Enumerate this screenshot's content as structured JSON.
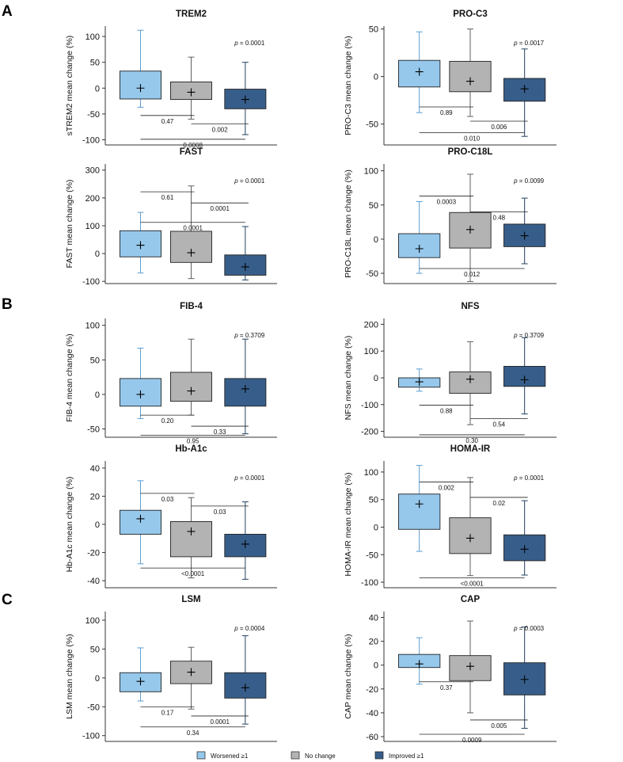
{
  "panel_letters": [
    "A",
    "B",
    "C"
  ],
  "groups": [
    {
      "name": "Worsened ≥1",
      "fill": "#96c8ec",
      "stroke": "#5d9ed2"
    },
    {
      "name": "No change",
      "fill": "#b3b3b3",
      "stroke": "#5f5f5f"
    },
    {
      "name": "Improved ≥1",
      "fill": "#375e8a",
      "stroke": "#22405f"
    }
  ],
  "legend": {
    "items": [
      "Worsened ≥1",
      "No change",
      "Improved ≥1"
    ]
  },
  "chart_data": [
    {
      "type": "box",
      "title": "TREM2",
      "ylabel": "sTREM2 mean change (%)",
      "ylim": [
        -110,
        120
      ],
      "yticks": [
        100,
        50,
        0,
        -50,
        -100
      ],
      "boxes": [
        {
          "group": "Worsened ≥1",
          "whisker_low": -37,
          "q1": -21,
          "mean": 0,
          "q3": 33,
          "whisker_high": 112
        },
        {
          "group": "No change",
          "whisker_low": -60,
          "q1": -22,
          "mean": -8,
          "q3": 12,
          "whisker_high": 60
        },
        {
          "group": "Improved ≥1",
          "whisker_low": -90,
          "q1": -40,
          "mean": -22,
          "q3": -2,
          "whisker_high": 50
        }
      ],
      "p_value": "p = 0.0001",
      "comparisons": [
        {
          "pair": [
            1,
            2
          ],
          "label": "0.47",
          "y": -53
        },
        {
          "pair": [
            2,
            3
          ],
          "label": "0.002",
          "y": -69
        },
        {
          "pair": [
            1,
            3
          ],
          "label": "0.0008",
          "y": -99
        }
      ]
    },
    {
      "type": "box",
      "title": "PRO-C3",
      "ylabel": "PRO-C3 mean change (%)",
      "ylim": [
        -72,
        53
      ],
      "yticks": [
        50,
        0,
        -50
      ],
      "boxes": [
        {
          "group": "Worsened ≥1",
          "whisker_low": -38,
          "q1": -11,
          "mean": 5,
          "q3": 17,
          "whisker_high": 47
        },
        {
          "group": "No change",
          "whisker_low": -42,
          "q1": -16,
          "mean": -5,
          "q3": 16,
          "whisker_high": 50
        },
        {
          "group": "Improved ≥1",
          "whisker_low": -63,
          "q1": -26,
          "mean": -13,
          "q3": -2,
          "whisker_high": 29
        }
      ],
      "p_value": "p = 0.0017",
      "comparisons": [
        {
          "pair": [
            1,
            2
          ],
          "label": "0.89",
          "y": -32
        },
        {
          "pair": [
            2,
            3
          ],
          "label": "0.006",
          "y": -47
        },
        {
          "pair": [
            1,
            3
          ],
          "label": "0.010",
          "y": -59
        }
      ]
    },
    {
      "type": "box",
      "title": "FAST",
      "ylabel": "FAST mean change (%)",
      "ylim": [
        -108,
        322
      ],
      "yticks": [
        300,
        200,
        100,
        0,
        -100
      ],
      "boxes": [
        {
          "group": "Worsened ≥1",
          "whisker_low": -70,
          "q1": -12,
          "mean": 30,
          "q3": 82,
          "whisker_high": 148
        },
        {
          "group": "No change",
          "whisker_low": -90,
          "q1": -32,
          "mean": 3,
          "q3": 80,
          "whisker_high": 243
        },
        {
          "group": "Improved ≥1",
          "whisker_low": -95,
          "q1": -78,
          "mean": -48,
          "q3": -5,
          "whisker_high": 97
        }
      ],
      "p_value": "p = 0.0001",
      "comparisons": [
        {
          "pair": [
            1,
            2
          ],
          "label": "0.61",
          "y": 222
        },
        {
          "pair": [
            2,
            3
          ],
          "label": "0.0001",
          "y": 182
        },
        {
          "pair": [
            1,
            3
          ],
          "label": "0.0001",
          "y": 112
        }
      ]
    },
    {
      "type": "box",
      "title": "PRO-C18L",
      "ylabel": "PRO-C18L mean change (%)",
      "ylim": [
        -65,
        110
      ],
      "yticks": [
        100,
        50,
        0,
        -50
      ],
      "boxes": [
        {
          "group": "Worsened ≥1",
          "whisker_low": -50,
          "q1": -27,
          "mean": -14,
          "q3": 8,
          "whisker_high": 55
        },
        {
          "group": "No change",
          "whisker_low": -62,
          "q1": -13,
          "mean": 14,
          "q3": 39,
          "whisker_high": 95
        },
        {
          "group": "Improved ≥1",
          "whisker_low": -36,
          "q1": -11,
          "mean": 5,
          "q3": 22,
          "whisker_high": 60
        }
      ],
      "p_value": "p = 0.0099",
      "comparisons": [
        {
          "pair": [
            1,
            2
          ],
          "label": "0.0003",
          "y": 63
        },
        {
          "pair": [
            2,
            3
          ],
          "label": "0.48",
          "y": 40
        },
        {
          "pair": [
            1,
            3
          ],
          "label": "0.012",
          "y": -43
        }
      ]
    },
    {
      "type": "box",
      "title": "FIB-4",
      "ylabel": "FIB-4 mean change (%)",
      "ylim": [
        -62,
        110
      ],
      "yticks": [
        100,
        50,
        0,
        -50
      ],
      "boxes": [
        {
          "group": "Worsened ≥1",
          "whisker_low": -35,
          "q1": -17,
          "mean": 0,
          "q3": 23,
          "whisker_high": 67
        },
        {
          "group": "No change",
          "whisker_low": -30,
          "q1": -10,
          "mean": 5,
          "q3": 32,
          "whisker_high": 80
        },
        {
          "group": "Improved ≥1",
          "whisker_low": -57,
          "q1": -17,
          "mean": 8,
          "q3": 23,
          "whisker_high": 80
        }
      ],
      "p_value": "p = 0.3709",
      "comparisons": [
        {
          "pair": [
            1,
            2
          ],
          "label": "0.20",
          "y": -30
        },
        {
          "pair": [
            2,
            3
          ],
          "label": "0.33",
          "y": -46
        },
        {
          "pair": [
            1,
            3
          ],
          "label": "0.95",
          "y": -59
        }
      ]
    },
    {
      "type": "box",
      "title": "NFS",
      "ylabel": "NFS mean change (%)",
      "ylim": [
        -222,
        222
      ],
      "yticks": [
        200,
        100,
        0,
        -100,
        -200
      ],
      "boxes": [
        {
          "group": "Worsened ≥1",
          "whisker_low": -50,
          "q1": -35,
          "mean": -15,
          "q3": 0,
          "whisker_high": 33
        },
        {
          "group": "No change",
          "whisker_low": -175,
          "q1": -58,
          "mean": -5,
          "q3": 22,
          "whisker_high": 135
        },
        {
          "group": "Improved ≥1",
          "whisker_low": -135,
          "q1": -32,
          "mean": -7,
          "q3": 43,
          "whisker_high": 150
        }
      ],
      "p_value": "p = 0.3709",
      "comparisons": [
        {
          "pair": [
            1,
            2
          ],
          "label": "0.88",
          "y": -102
        },
        {
          "pair": [
            2,
            3
          ],
          "label": "0.54",
          "y": -152
        },
        {
          "pair": [
            1,
            3
          ],
          "label": "0.30",
          "y": -213
        }
      ]
    },
    {
      "type": "box",
      "title": "Hb-A1c",
      "ylabel": "Hb-A1c mean change (%)",
      "ylim": [
        -45,
        45
      ],
      "yticks": [
        40,
        20,
        0,
        -20,
        -40
      ],
      "boxes": [
        {
          "group": "Worsened ≥1",
          "whisker_low": -28,
          "q1": -7,
          "mean": 4,
          "q3": 10,
          "whisker_high": 31
        },
        {
          "group": "No change",
          "whisker_low": -38,
          "q1": -23,
          "mean": -5,
          "q3": 2,
          "whisker_high": 19
        },
        {
          "group": "Improved ≥1",
          "whisker_low": -39,
          "q1": -23,
          "mean": -14,
          "q3": -7,
          "whisker_high": 16
        }
      ],
      "p_value": "p = 0.0001",
      "comparisons": [
        {
          "pair": [
            1,
            2
          ],
          "label": "0.03",
          "y": 22
        },
        {
          "pair": [
            2,
            3
          ],
          "label": "0.03",
          "y": 13
        },
        {
          "pair": [
            1,
            3
          ],
          "label": "<0.0001",
          "y": -31
        }
      ]
    },
    {
      "type": "box",
      "title": "HOMA-IR",
      "ylabel": "HOMA-IR mean change (%)",
      "ylim": [
        -110,
        120
      ],
      "yticks": [
        100,
        50,
        0,
        -50,
        -100
      ],
      "boxes": [
        {
          "group": "Worsened ≥1",
          "whisker_low": -44,
          "q1": -4,
          "mean": 42,
          "q3": 60,
          "whisker_high": 112
        },
        {
          "group": "No change",
          "whisker_low": -88,
          "q1": -48,
          "mean": -20,
          "q3": 17,
          "whisker_high": 90
        },
        {
          "group": "Improved ≥1",
          "whisker_low": -87,
          "q1": -61,
          "mean": -40,
          "q3": -14,
          "whisker_high": 48
        }
      ],
      "p_value": "p = 0.0001",
      "comparisons": [
        {
          "pair": [
            1,
            2
          ],
          "label": "0.002",
          "y": 82
        },
        {
          "pair": [
            2,
            3
          ],
          "label": "0.02",
          "y": 54
        },
        {
          "pair": [
            1,
            3
          ],
          "label": "<0.0001",
          "y": -92
        }
      ]
    },
    {
      "type": "box",
      "title": "LSM",
      "ylabel": "LSM mean change (%)",
      "ylim": [
        -110,
        115
      ],
      "yticks": [
        100,
        50,
        0,
        -50,
        -100
      ],
      "boxes": [
        {
          "group": "Worsened ≥1",
          "whisker_low": -40,
          "q1": -24,
          "mean": -6,
          "q3": 9,
          "whisker_high": 52
        },
        {
          "group": "No change",
          "whisker_low": -54,
          "q1": -10,
          "mean": 10,
          "q3": 29,
          "whisker_high": 53
        },
        {
          "group": "Improved ≥1",
          "whisker_low": -80,
          "q1": -35,
          "mean": -17,
          "q3": 9,
          "whisker_high": 73
        }
      ],
      "p_value": "p = 0.0004",
      "comparisons": [
        {
          "pair": [
            1,
            2
          ],
          "label": "0.17",
          "y": -50
        },
        {
          "pair": [
            2,
            3
          ],
          "label": "0.0001",
          "y": -66
        },
        {
          "pair": [
            1,
            3
          ],
          "label": "0.34",
          "y": -85
        }
      ]
    },
    {
      "type": "box",
      "title": "CAP",
      "ylabel": "CAP mean change (%)",
      "ylim": [
        -64,
        45
      ],
      "yticks": [
        40,
        20,
        0,
        -20,
        -40,
        -60
      ],
      "boxes": [
        {
          "group": "Worsened ≥1",
          "whisker_low": -16,
          "q1": -2,
          "mean": 1,
          "q3": 9,
          "whisker_high": 23
        },
        {
          "group": "No change",
          "whisker_low": -40,
          "q1": -13,
          "mean": -1,
          "q3": 8,
          "whisker_high": 37
        },
        {
          "group": "Improved ≥1",
          "whisker_low": -53,
          "q1": -25,
          "mean": -12,
          "q3": 2,
          "whisker_high": 32
        }
      ],
      "p_value": "p = 0.0003",
      "comparisons": [
        {
          "pair": [
            1,
            2
          ],
          "label": "0.37",
          "y": -14
        },
        {
          "pair": [
            2,
            3
          ],
          "label": "0.005",
          "y": -46
        },
        {
          "pair": [
            1,
            3
          ],
          "label": "0.0009",
          "y": -58
        }
      ]
    }
  ]
}
